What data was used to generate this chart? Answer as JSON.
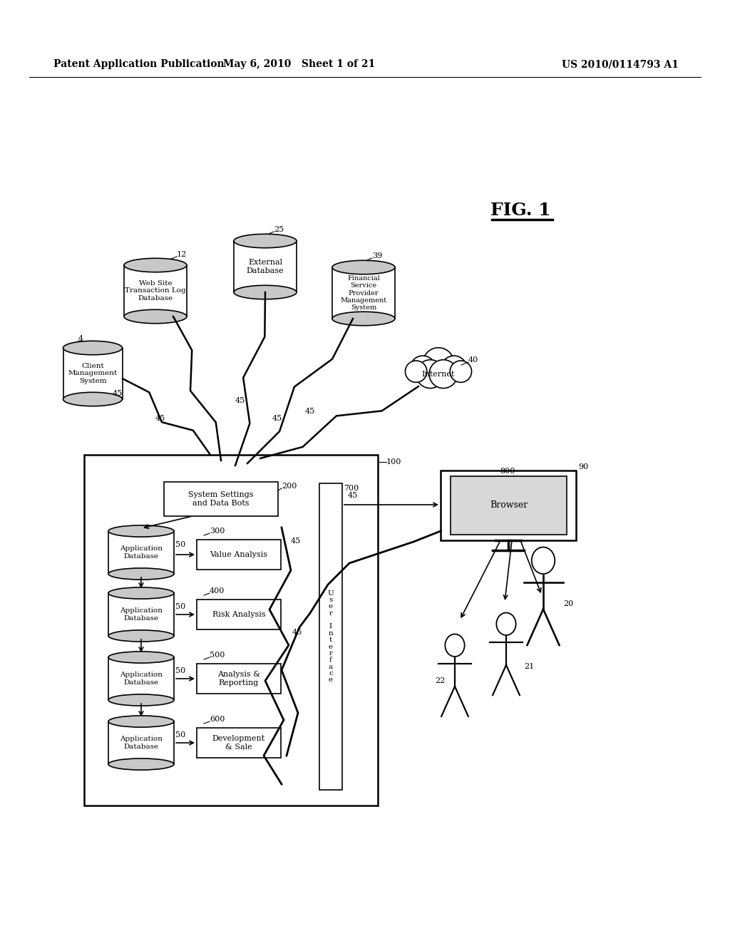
{
  "bg_color": "#ffffff",
  "header_left": "Patent Application Publication",
  "header_mid": "May 6, 2010   Sheet 1 of 21",
  "header_right": "US 2010/0114793 A1",
  "fig_label": "FIG. 1",
  "header_fontsize": 10,
  "fig_fontsize": 18
}
